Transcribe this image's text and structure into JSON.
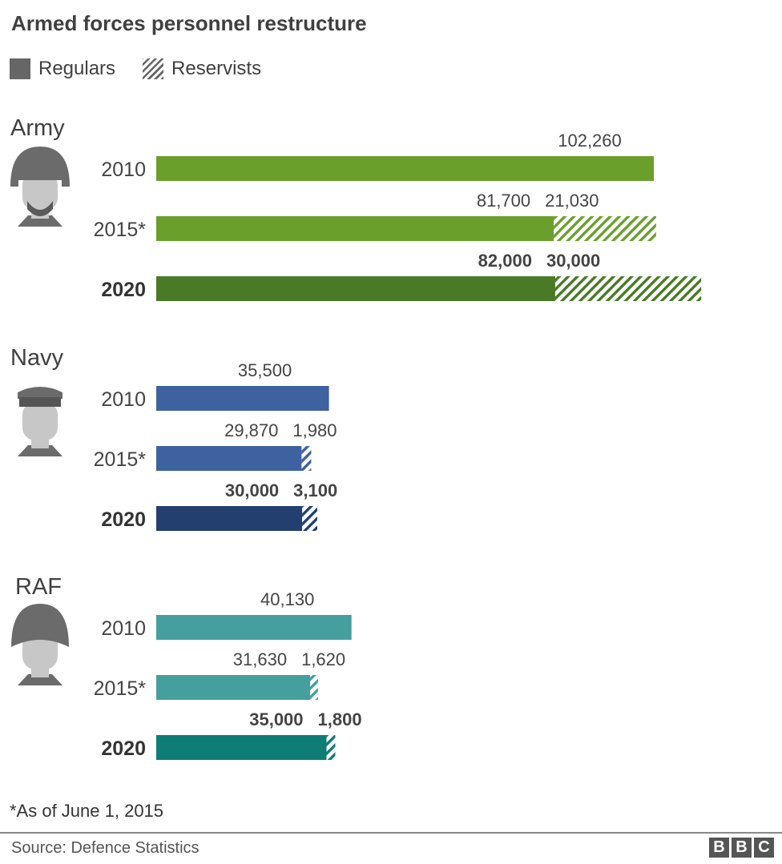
{
  "title": "Armed forces personnel restructure",
  "legend": {
    "regulars": "Regulars",
    "reservists": "Reservists"
  },
  "footnote": "*As of June 1, 2015",
  "source": "Source: Defence Statistics",
  "logo": [
    "B",
    "B",
    "C"
  ],
  "icons": [
    "army-soldier-helmet-icon",
    "navy-sailor-cap-icon",
    "raf-airman-helmet-icon"
  ],
  "chart_data": {
    "type": "bar",
    "orientation": "horizontal",
    "stacked": true,
    "series_names": [
      "Regulars",
      "Reservists"
    ],
    "groups": [
      {
        "name": "Army",
        "icon": "army-soldier-helmet-icon",
        "colors": {
          "regular": "#6a9f2c",
          "regular_2020": "#4a7a25"
        },
        "rows": [
          {
            "year": "2010",
            "regulars": 102260,
            "reservists": null,
            "labels": [
              "102,260"
            ],
            "bold": false
          },
          {
            "year": "2015*",
            "regulars": 81700,
            "reservists": 21030,
            "labels": [
              "81,700",
              "21,030"
            ],
            "bold": false
          },
          {
            "year": "2020",
            "regulars": 82000,
            "reservists": 30000,
            "labels": [
              "82,000",
              "30,000"
            ],
            "bold": true
          }
        ]
      },
      {
        "name": "Navy",
        "icon": "navy-sailor-cap-icon",
        "colors": {
          "regular": "#3e62a0",
          "regular_2020": "#223f70"
        },
        "rows": [
          {
            "year": "2010",
            "regulars": 35500,
            "reservists": null,
            "labels": [
              "35,500"
            ],
            "bold": false
          },
          {
            "year": "2015*",
            "regulars": 29870,
            "reservists": 1980,
            "labels": [
              "29,870",
              "1,980"
            ],
            "bold": false
          },
          {
            "year": "2020",
            "regulars": 30000,
            "reservists": 3100,
            "labels": [
              "30,000",
              "3,100"
            ],
            "bold": true
          }
        ]
      },
      {
        "name": "RAF",
        "icon": "raf-airman-helmet-icon",
        "colors": {
          "regular": "#449f9e",
          "regular_2020": "#0e7d76"
        },
        "rows": [
          {
            "year": "2010",
            "regulars": 40130,
            "reservists": null,
            "labels": [
              "40,130"
            ],
            "bold": false
          },
          {
            "year": "2015*",
            "regulars": 31630,
            "reservists": 1620,
            "labels": [
              "31,630",
              "1,620"
            ],
            "bold": false
          },
          {
            "year": "2020",
            "regulars": 35000,
            "reservists": 1800,
            "labels": [
              "35,000",
              "1,800"
            ],
            "bold": true
          }
        ]
      }
    ]
  }
}
